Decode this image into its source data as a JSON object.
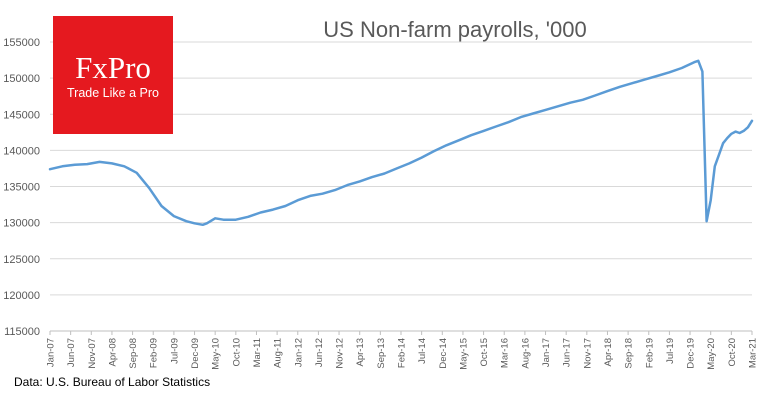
{
  "chart_data": {
    "type": "line",
    "title": "US Non-farm payrolls, '000",
    "xlabel": "",
    "ylabel": "",
    "ylim": [
      115000,
      155000
    ],
    "yticks": [
      115000,
      120000,
      125000,
      130000,
      135000,
      140000,
      145000,
      150000,
      155000
    ],
    "x_start": "Jan-07",
    "x_end": "Mar-21",
    "x_tick_labels": [
      "Jan-07",
      "Jun-07",
      "Nov-07",
      "Apr-08",
      "Sep-08",
      "Feb-09",
      "Jul-09",
      "Dec-09",
      "May-10",
      "Oct-10",
      "Mar-11",
      "Aug-11",
      "Jan-12",
      "Jun-12",
      "Nov-12",
      "Apr-13",
      "Sep-13",
      "Feb-14",
      "Jul-14",
      "Dec-14",
      "May-15",
      "Oct-15",
      "Mar-16",
      "Aug-16",
      "Jan-17",
      "Jun-17",
      "Nov-17",
      "Apr-18",
      "Sep-18",
      "Feb-19",
      "Jul-19",
      "Dec-19",
      "May-20",
      "Oct-20",
      "Mar-21"
    ],
    "grid": "horizontal",
    "line_color": "#5b9bd5",
    "series": [
      {
        "points": [
          [
            "Jan-07",
            137400
          ],
          [
            "Apr-07",
            137800
          ],
          [
            "Jul-07",
            138000
          ],
          [
            "Oct-07",
            138100
          ],
          [
            "Jan-08",
            138400
          ],
          [
            "Apr-08",
            138200
          ],
          [
            "Jul-08",
            137800
          ],
          [
            "Oct-08",
            136900
          ],
          [
            "Jan-09",
            134800
          ],
          [
            "Apr-09",
            132300
          ],
          [
            "Jul-09",
            130900
          ],
          [
            "Oct-09",
            130200
          ],
          [
            "Dec-09",
            129900
          ],
          [
            "Feb-10",
            129700
          ],
          [
            "Mar-10",
            129900
          ],
          [
            "May-10",
            130600
          ],
          [
            "Jul-10",
            130400
          ],
          [
            "Oct-10",
            130400
          ],
          [
            "Jan-11",
            130800
          ],
          [
            "Apr-11",
            131400
          ],
          [
            "Jul-11",
            131800
          ],
          [
            "Oct-11",
            132300
          ],
          [
            "Jan-12",
            133100
          ],
          [
            "Apr-12",
            133700
          ],
          [
            "Jul-12",
            134000
          ],
          [
            "Oct-12",
            134500
          ],
          [
            "Jan-13",
            135200
          ],
          [
            "Apr-13",
            135700
          ],
          [
            "Jul-13",
            136300
          ],
          [
            "Oct-13",
            136800
          ],
          [
            "Jan-14",
            137500
          ],
          [
            "Apr-14",
            138200
          ],
          [
            "Jul-14",
            139000
          ],
          [
            "Oct-14",
            139900
          ],
          [
            "Jan-15",
            140700
          ],
          [
            "Apr-15",
            141400
          ],
          [
            "Jul-15",
            142100
          ],
          [
            "Oct-15",
            142700
          ],
          [
            "Jan-16",
            143300
          ],
          [
            "Apr-16",
            143900
          ],
          [
            "Jul-16",
            144600
          ],
          [
            "Oct-16",
            145100
          ],
          [
            "Jan-17",
            145600
          ],
          [
            "Apr-17",
            146100
          ],
          [
            "Jul-17",
            146600
          ],
          [
            "Oct-17",
            147000
          ],
          [
            "Jan-18",
            147600
          ],
          [
            "Apr-18",
            148200
          ],
          [
            "Jul-18",
            148800
          ],
          [
            "Oct-18",
            149300
          ],
          [
            "Jan-19",
            149800
          ],
          [
            "Apr-19",
            150300
          ],
          [
            "Jul-19",
            150800
          ],
          [
            "Oct-19",
            151400
          ],
          [
            "Jan-20",
            152200
          ],
          [
            "Feb-20",
            152400
          ],
          [
            "Mar-20",
            150900
          ],
          [
            "Apr-20",
            130200
          ],
          [
            "May-20",
            133100
          ],
          [
            "Jun-20",
            137800
          ],
          [
            "Jul-20",
            139400
          ],
          [
            "Aug-20",
            141000
          ],
          [
            "Sep-20",
            141700
          ],
          [
            "Oct-20",
            142300
          ],
          [
            "Nov-20",
            142600
          ],
          [
            "Dec-20",
            142400
          ],
          [
            "Jan-21",
            142700
          ],
          [
            "Feb-21",
            143200
          ],
          [
            "Mar-21",
            144100
          ]
        ]
      }
    ]
  },
  "logo": {
    "brand": "FxPro",
    "tagline": "Trade Like a Pro",
    "color": "#e5191f"
  },
  "source_note": "Data: U.S. Bureau of Labor Statistics"
}
